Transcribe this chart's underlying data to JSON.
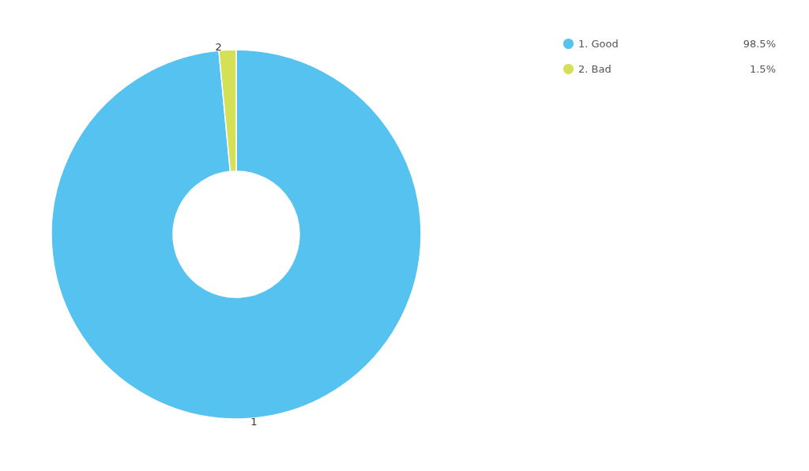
{
  "chart_data": {
    "type": "donut",
    "categories": [
      "1. Good",
      "2. Bad"
    ],
    "values": [
      98.5,
      1.5
    ],
    "colors": [
      "#56c2f0",
      "#d4e157"
    ],
    "value_labels": [
      "98.5%",
      "1.5%"
    ],
    "annotations": [
      "1",
      "2"
    ],
    "legend": "top right"
  }
}
